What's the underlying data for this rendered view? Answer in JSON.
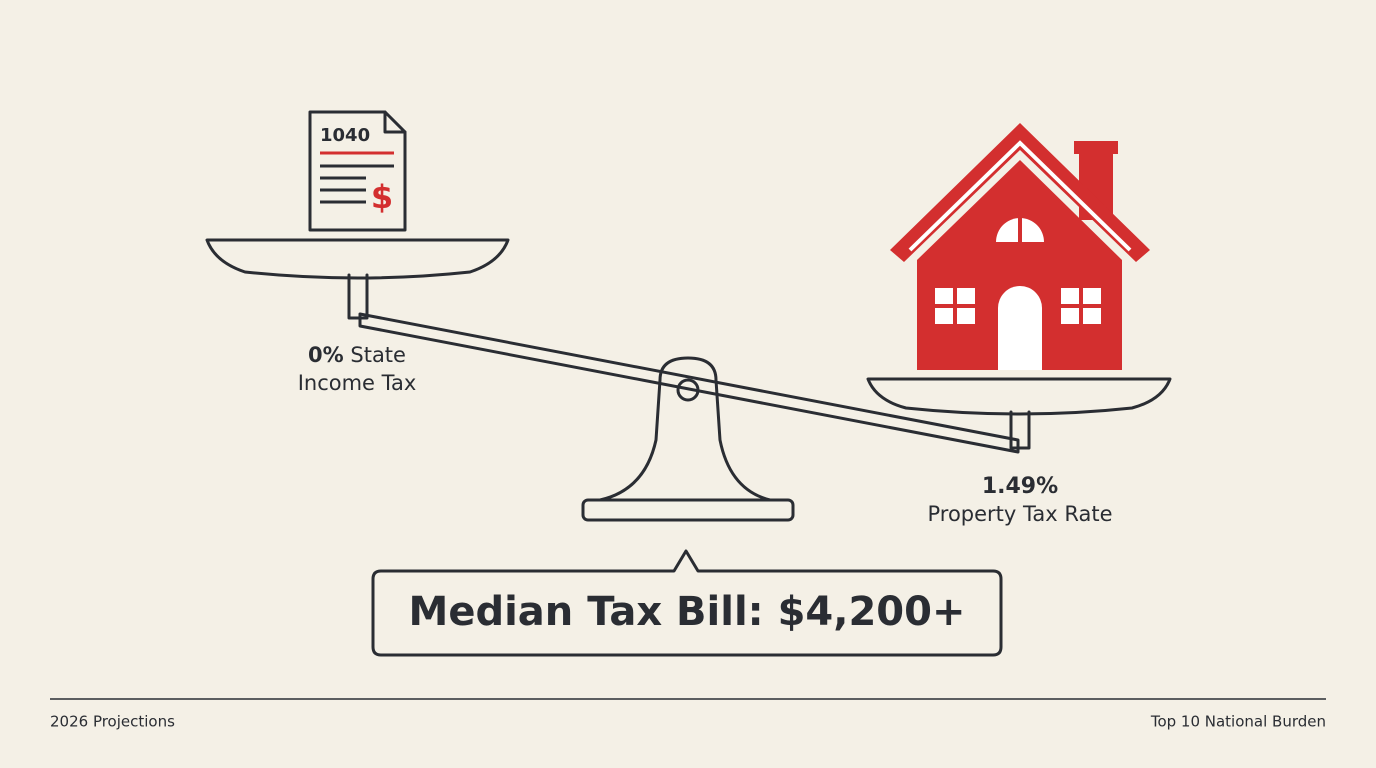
{
  "document": {
    "form_label": "1040",
    "form_symbol": "$",
    "left_label": {
      "figure": "0%",
      "lines": [
        "State",
        "Income Tax"
      ]
    },
    "right_label": {
      "figure": "1.49%",
      "text": "Property Tax Rate"
    },
    "callout": "Median Tax Bill: $4,200+",
    "footer": {
      "left": "2026 Projections",
      "right": "Top 10 National Burden"
    }
  }
}
